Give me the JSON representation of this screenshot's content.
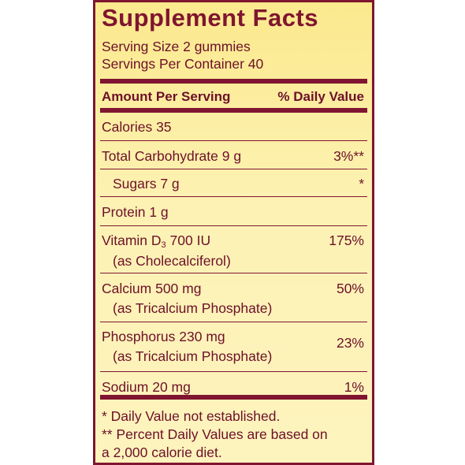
{
  "panel": {
    "title": "Supplement Facts",
    "serving_size": "Serving Size 2 gummies",
    "servings_per_container": "Servings Per Container 40",
    "header": {
      "amount_label": "Amount Per Serving",
      "dv_label": "% Daily Value"
    },
    "rows": [
      {
        "name": "Calories",
        "amount": "35",
        "dv": ""
      },
      {
        "name": "Total Carbohydrate",
        "amount": "9 g",
        "dv": "3%**"
      },
      {
        "name": "Sugars",
        "amount": "7 g",
        "dv": "*"
      },
      {
        "name": "Protein",
        "amount": "1 g",
        "dv": ""
      },
      {
        "name": "Vitamin D",
        "subscript": "3",
        "amount": "700 IU",
        "dv": "175%",
        "source": "(as Cholecalciferol)"
      },
      {
        "name": "Calcium",
        "amount": "500 mg",
        "dv": "50%",
        "source": "(as Tricalcium Phosphate)"
      },
      {
        "name": "Phosphorus",
        "amount": "230 mg",
        "dv": "23%",
        "source": "(as Tricalcium Phosphate)"
      },
      {
        "name": "Sodium",
        "amount": "20 mg",
        "dv": "1%"
      }
    ],
    "footnotes": [
      "* Daily Value not established.",
      "** Percent Daily Values are based on",
      "a 2,000 calorie diet."
    ]
  },
  "colors": {
    "primary": "#7f1530",
    "background_top": "#fbe98d",
    "background_bottom": "#fdf3bd"
  }
}
